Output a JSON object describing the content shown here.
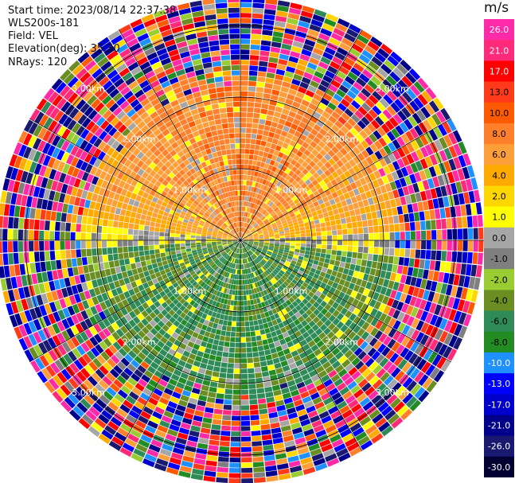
{
  "info": {
    "start_time": "Start time: 2023/08/14 22:37:38",
    "site": "WLS200s-181",
    "field": "Field: VEL",
    "elevation": "Elevation(deg): 35.30",
    "nrays": "NRays: 120"
  },
  "colorbar": {
    "unit": "m/s",
    "labels": [
      "26.0",
      "21.0",
      "17.0",
      "13.0",
      "10.0",
      "8.0",
      "6.0",
      "4.0",
      "2.0",
      "1.0",
      "0.0",
      "-1.0",
      "-2.0",
      "-4.0",
      "-6.0",
      "-8.0",
      "-10.0",
      "-13.0",
      "-17.0",
      "-21.0",
      "-26.0",
      "-30.0"
    ],
    "colors": [
      "#ff2aa8",
      "#ff2a7a",
      "#ff0000",
      "#ff3a1a",
      "#ff5a00",
      "#ff7f2a",
      "#ff9f3a",
      "#ffaa00",
      "#ffd700",
      "#ffff00",
      "#a6a6a6",
      "#7f7f7f",
      "#9acd32",
      "#6b8e23",
      "#2e8b57",
      "#228b22",
      "#1e90ff",
      "#0000ff",
      "#0000cd",
      "#00008b",
      "#191970",
      "#000033"
    ]
  },
  "chart_data": {
    "type": "heatmap",
    "projection": "polar PPI",
    "field": "VEL",
    "units": "m/s",
    "n_rays": 120,
    "range_rings_km": [
      1.0,
      2.0,
      3.0
    ],
    "ring_labels": [
      "1.00km",
      "2.00km",
      "3.00km"
    ],
    "azimuth_spokes_deg": [
      0,
      30,
      60,
      90,
      120,
      150,
      180,
      210,
      240,
      270,
      300,
      330
    ],
    "max_range_km": 3.4,
    "value_scale": [
      -30,
      -26,
      -21,
      -17,
      -13,
      -10,
      -8,
      -6,
      -4,
      -2,
      -1,
      0,
      1,
      2,
      4,
      6,
      8,
      10,
      13,
      17,
      21,
      26
    ],
    "pattern": {
      "north_sector_mean": 3.0,
      "south_sector_mean": -5.0,
      "inner_clean_range_km": 2.3,
      "outer_region": "noisy random velocities"
    }
  }
}
